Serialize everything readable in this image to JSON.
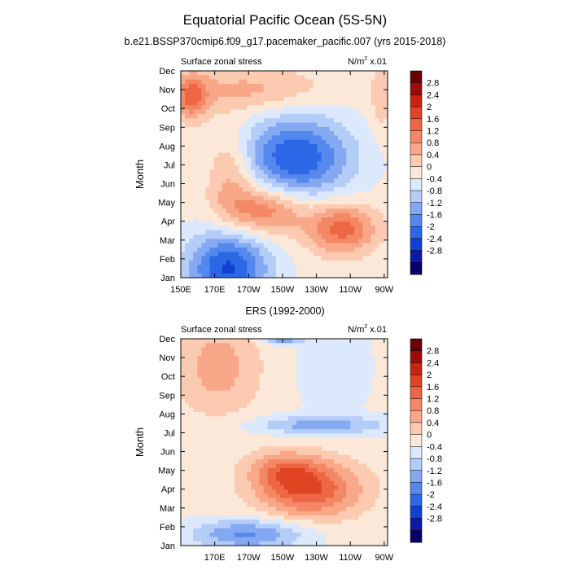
{
  "title": "Equatorial Pacific Ocean (5S-5N)",
  "colors": [
    "#08006b",
    "#0a1aa8",
    "#1240d0",
    "#2c68e6",
    "#5588ee",
    "#84a8f2",
    "#b4ccf8",
    "#dce8fc",
    "#fce8d8",
    "#fccab0",
    "#f8a888",
    "#f48866",
    "#ee6644",
    "#e04422",
    "#c82410",
    "#9c0c06",
    "#6a0000"
  ],
  "chart_data": [
    {
      "type": "heatmap",
      "title": "b.e21.BSSP370cmip6.f09_g17.pacemaker_pacific.007 (yrs 2015-2018)",
      "left_label": "Surface zonal stress",
      "right_label": "N/m",
      "right_label_sup": "2",
      "right_label_suffix": " x.01",
      "ylabel": "Month",
      "y_ticks": [
        "Jan",
        "Feb",
        "Mar",
        "Apr",
        "May",
        "Jun",
        "Jul",
        "Aug",
        "Sep",
        "Oct",
        "Nov",
        "Dec"
      ],
      "x_ticks": [
        "150E",
        "170E",
        "170W",
        "150W",
        "130W",
        "110W",
        "90W"
      ],
      "x_tick_lon": [
        150,
        170,
        190,
        210,
        230,
        250,
        270
      ],
      "xlim": [
        150,
        272
      ],
      "colorbar_levels": [
        "2.8",
        "2.4",
        "2",
        "1.6",
        "1.2",
        "0.8",
        "0.4",
        "0",
        "-0.4",
        "-0.8",
        "-1.2",
        "-1.6",
        "-2",
        "-2.4",
        "-2.8"
      ],
      "features": [
        {
          "lon": 178,
          "month": 0.5,
          "value": -2.2,
          "dlon": 24,
          "dmonth": 2.0
        },
        {
          "lon": 218,
          "month": 6.4,
          "value": -2.1,
          "dlon": 32,
          "dmonth": 2.2
        },
        {
          "lon": 245,
          "month": 2.6,
          "value": 1.7,
          "dlon": 20,
          "dmonth": 1.3
        },
        {
          "lon": 200,
          "month": 3.6,
          "value": 1.5,
          "dlon": 24,
          "dmonth": 1.3
        },
        {
          "lon": 180,
          "month": 5.5,
          "value": 0.9,
          "dlon": 14,
          "dmonth": 2.4
        },
        {
          "lon": 156,
          "month": 9.6,
          "value": 1.4,
          "dlon": 10,
          "dmonth": 1.2
        },
        {
          "lon": 190,
          "month": 10.0,
          "value": 0.8,
          "dlon": 44,
          "dmonth": 1.2
        },
        {
          "lon": 268,
          "month": 9.5,
          "value": 0.6,
          "dlon": 6,
          "dmonth": 1.8
        }
      ]
    },
    {
      "type": "heatmap",
      "title": "ERS (1992-2000)",
      "left_label": "Surface zonal stress",
      "right_label": "N/m",
      "right_label_sup": "2",
      "right_label_suffix": " x.01",
      "ylabel": "Month",
      "y_ticks": [
        "Jan",
        "Feb",
        "Mar",
        "Apr",
        "May",
        "Jun",
        "Jul",
        "Aug",
        "Sep",
        "Oct",
        "Nov",
        "Dec"
      ],
      "x_ticks": [
        "170E",
        "170W",
        "150W",
        "130W",
        "110W",
        "90W"
      ],
      "x_tick_lon": [
        170,
        190,
        210,
        230,
        250,
        270
      ],
      "xlim": [
        150,
        272
      ],
      "colorbar_levels": [
        "2.8",
        "2.4",
        "2",
        "1.6",
        "1.2",
        "0.8",
        "0.4",
        "0",
        "-0.4",
        "-0.8",
        "-1.2",
        "-1.6",
        "-2",
        "-2.4",
        "-2.8"
      ],
      "features": [
        {
          "lon": 226,
          "month": 3.0,
          "value": 1.9,
          "dlon": 30,
          "dmonth": 1.5
        },
        {
          "lon": 210,
          "month": 4.0,
          "value": 1.0,
          "dlon": 20,
          "dmonth": 1.0
        },
        {
          "lon": 190,
          "month": 0.6,
          "value": -1.4,
          "dlon": 34,
          "dmonth": 0.8
        },
        {
          "lon": 232,
          "month": 6.4,
          "value": -1.1,
          "dlon": 40,
          "dmonth": 0.5
        },
        {
          "lon": 210,
          "month": 11.0,
          "value": -1.3,
          "dlon": 12,
          "dmonth": 0.3
        },
        {
          "lon": 240,
          "month": 9.5,
          "value": -0.5,
          "dlon": 20,
          "dmonth": 2.5
        },
        {
          "lon": 172,
          "month": 9.5,
          "value": 0.9,
          "dlon": 24,
          "dmonth": 2.5
        }
      ]
    }
  ]
}
